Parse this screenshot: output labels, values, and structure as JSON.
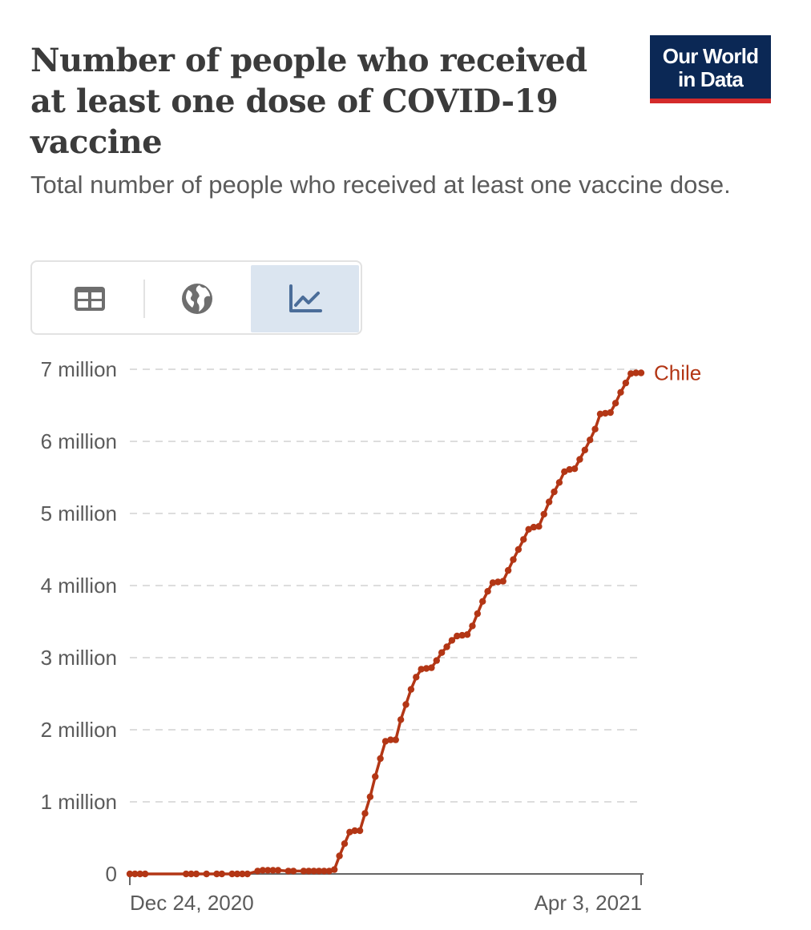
{
  "title": "Number of people who received at least one dose of COVID-19 vaccine",
  "subtitle": "Total number of people who received at least one vaccine dose.",
  "logo": {
    "line1": "Our World",
    "line2": "in Data"
  },
  "tabs": [
    {
      "name": "table",
      "icon": "table-icon",
      "active": false
    },
    {
      "name": "map",
      "icon": "globe-icon",
      "active": false
    },
    {
      "name": "chart",
      "icon": "line-chart-icon",
      "active": true
    }
  ],
  "colors": {
    "series": "#b33615",
    "grid": "#dddddd",
    "axis": "#5b5b5b",
    "active_tab": "#dbe5f0",
    "logo_bg": "#0b2855",
    "logo_bar": "#d42b2b"
  },
  "chart_data": {
    "type": "line",
    "title": "Number of people who received at least one dose of COVID-19 vaccine",
    "xlabel": "",
    "ylabel": "",
    "x_start": "Dec 24, 2020",
    "x_end": "Apr 3, 2021",
    "xlim": [
      0,
      100
    ],
    "ylim": [
      0,
      7000000
    ],
    "y_ticks": [
      {
        "value": 0,
        "label": "0"
      },
      {
        "value": 1000000,
        "label": "1 million"
      },
      {
        "value": 2000000,
        "label": "2 million"
      },
      {
        "value": 3000000,
        "label": "3 million"
      },
      {
        "value": 4000000,
        "label": "4 million"
      },
      {
        "value": 5000000,
        "label": "5 million"
      },
      {
        "value": 6000000,
        "label": "6 million"
      },
      {
        "value": 7000000,
        "label": "7 million"
      }
    ],
    "x_ticks": [
      {
        "day": 0,
        "label": "Dec 24, 2020"
      },
      {
        "day": 100,
        "label": "Apr 3, 2021"
      }
    ],
    "grid": "horizontal-dashed",
    "series": [
      {
        "name": "Chile",
        "days": [
          0,
          1,
          2,
          3,
          11,
          12,
          13,
          15,
          17,
          18,
          20,
          21,
          22,
          23,
          25,
          26,
          27,
          28,
          29,
          31,
          32,
          34,
          35,
          36,
          37,
          38,
          39,
          40,
          41,
          42,
          43,
          44,
          45,
          46,
          47,
          48,
          49,
          50,
          51,
          52,
          53,
          54,
          55,
          56,
          57,
          58,
          59,
          60,
          61,
          62,
          63,
          64,
          65,
          66,
          67,
          68,
          69,
          70,
          71,
          72,
          73,
          74,
          75,
          76,
          77,
          78,
          79,
          80,
          81,
          82,
          83,
          84,
          85,
          86,
          87,
          88,
          89,
          90,
          91,
          92,
          93,
          94,
          95,
          96,
          97,
          98,
          99,
          100
        ],
        "values": [
          0,
          0,
          0,
          0,
          0,
          0,
          0,
          0,
          0,
          0,
          0,
          0,
          0,
          0,
          40000,
          50000,
          50000,
          50000,
          50000,
          40000,
          40000,
          40000,
          40000,
          40000,
          40000,
          40000,
          40000,
          60000,
          250000,
          420000,
          580000,
          600000,
          600000,
          840000,
          1070000,
          1350000,
          1600000,
          1840000,
          1860000,
          1860000,
          2140000,
          2350000,
          2560000,
          2730000,
          2840000,
          2850000,
          2860000,
          2960000,
          3070000,
          3150000,
          3240000,
          3300000,
          3310000,
          3320000,
          3440000,
          3610000,
          3780000,
          3920000,
          4040000,
          4050000,
          4060000,
          4210000,
          4360000,
          4500000,
          4640000,
          4780000,
          4810000,
          4820000,
          4990000,
          5160000,
          5300000,
          5430000,
          5580000,
          5610000,
          5620000,
          5750000,
          5880000,
          6020000,
          6170000,
          6380000,
          6390000,
          6400000,
          6530000,
          6680000,
          6810000,
          6940000,
          6950000,
          6950000
        ]
      }
    ]
  }
}
